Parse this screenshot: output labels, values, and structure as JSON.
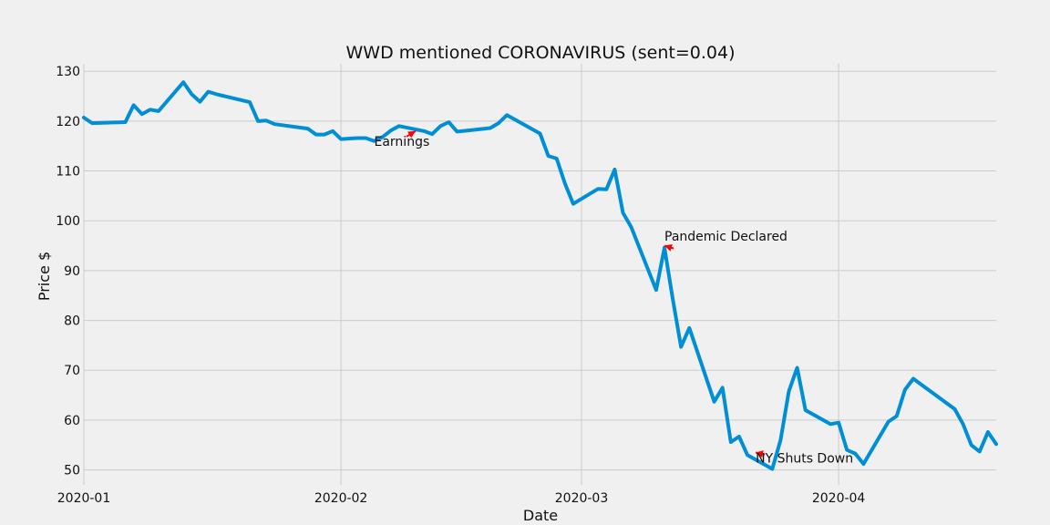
{
  "chart_data": {
    "type": "line",
    "title": "WWD mentioned CORONAVIRUS (sent=0.04)",
    "xlabel": "Date",
    "ylabel": "Price $",
    "xlim": [
      "2020-01-01",
      "2020-04-20"
    ],
    "ylim": [
      47,
      131.5
    ],
    "grid": true,
    "x_ticks": [
      {
        "date": "2020-01-01",
        "label": "2020-01"
      },
      {
        "date": "2020-02-01",
        "label": "2020-02"
      },
      {
        "date": "2020-03-01",
        "label": "2020-03"
      },
      {
        "date": "2020-04-01",
        "label": "2020-04"
      }
    ],
    "y_ticks": [
      50,
      60,
      70,
      80,
      90,
      100,
      110,
      120,
      130
    ],
    "series": [
      {
        "color": "#008fd5",
        "points": [
          [
            "2020-01-01",
            120.7
          ],
          [
            "2020-01-02",
            119.6
          ],
          [
            "2020-01-06",
            119.8
          ],
          [
            "2020-01-07",
            123.2
          ],
          [
            "2020-01-08",
            121.4
          ],
          [
            "2020-01-09",
            122.3
          ],
          [
            "2020-01-10",
            122.0
          ],
          [
            "2020-01-13",
            127.8
          ],
          [
            "2020-01-14",
            125.4
          ],
          [
            "2020-01-15",
            123.9
          ],
          [
            "2020-01-16",
            125.9
          ],
          [
            "2020-01-17",
            125.4
          ],
          [
            "2020-01-21",
            123.8
          ],
          [
            "2020-01-22",
            120.0
          ],
          [
            "2020-01-23",
            120.1
          ],
          [
            "2020-01-24",
            119.4
          ],
          [
            "2020-01-28",
            118.5
          ],
          [
            "2020-01-29",
            117.3
          ],
          [
            "2020-01-30",
            117.3
          ],
          [
            "2020-01-31",
            118.0
          ],
          [
            "2020-02-01",
            116.4
          ],
          [
            "2020-02-03",
            116.6
          ],
          [
            "2020-02-04",
            116.6
          ],
          [
            "2020-02-05",
            116.0
          ],
          [
            "2020-02-06",
            116.8
          ],
          [
            "2020-02-07",
            118.1
          ],
          [
            "2020-02-08",
            119.0
          ],
          [
            "2020-02-11",
            118.0
          ],
          [
            "2020-02-12",
            117.4
          ],
          [
            "2020-02-13",
            119.0
          ],
          [
            "2020-02-14",
            119.8
          ],
          [
            "2020-02-15",
            117.9
          ],
          [
            "2020-02-19",
            118.6
          ],
          [
            "2020-02-20",
            119.6
          ],
          [
            "2020-02-21",
            121.2
          ],
          [
            "2020-02-25",
            117.5
          ],
          [
            "2020-02-26",
            113.0
          ],
          [
            "2020-02-27",
            112.5
          ],
          [
            "2020-02-28",
            107.5
          ],
          [
            "2020-02-29",
            103.4
          ],
          [
            "2020-03-03",
            106.4
          ],
          [
            "2020-03-04",
            106.3
          ],
          [
            "2020-03-05",
            110.3
          ],
          [
            "2020-03-06",
            101.6
          ],
          [
            "2020-03-07",
            98.7
          ],
          [
            "2020-03-10",
            86.1
          ],
          [
            "2020-03-11",
            94.6
          ],
          [
            "2020-03-12",
            84.3
          ],
          [
            "2020-03-13",
            74.7
          ],
          [
            "2020-03-14",
            78.5
          ],
          [
            "2020-03-17",
            63.7
          ],
          [
            "2020-03-18",
            66.5
          ],
          [
            "2020-03-19",
            55.6
          ],
          [
            "2020-03-20",
            56.7
          ],
          [
            "2020-03-21",
            53.0
          ],
          [
            "2020-03-24",
            50.2
          ],
          [
            "2020-03-25",
            56.0
          ],
          [
            "2020-03-26",
            65.8
          ],
          [
            "2020-03-27",
            70.5
          ],
          [
            "2020-03-28",
            62.0
          ],
          [
            "2020-03-31",
            59.2
          ],
          [
            "2020-04-01",
            59.5
          ],
          [
            "2020-04-02",
            54.0
          ],
          [
            "2020-04-03",
            53.3
          ],
          [
            "2020-04-04",
            51.2
          ],
          [
            "2020-04-07",
            59.7
          ],
          [
            "2020-04-08",
            60.8
          ],
          [
            "2020-04-09",
            66.1
          ],
          [
            "2020-04-10",
            68.3
          ],
          [
            "2020-04-15",
            62.2
          ],
          [
            "2020-04-16",
            59.2
          ],
          [
            "2020-04-17",
            55.0
          ],
          [
            "2020-04-18",
            53.7
          ],
          [
            "2020-04-19",
            57.6
          ],
          [
            "2020-04-20",
            55.2
          ]
        ]
      }
    ],
    "annotations": [
      {
        "text": "Earnings",
        "point": [
          "2020-02-10",
          118.0
        ],
        "text_at": [
          "2020-02-05",
          115.0
        ]
      },
      {
        "text": "Pandemic Declared",
        "point": [
          "2020-03-11",
          95.0
        ],
        "text_at": [
          "2020-03-11",
          96.0
        ]
      },
      {
        "text": "NY Shuts Down",
        "point": [
          "2020-03-22",
          53.5
        ],
        "text_at": [
          "2020-03-22",
          51.5
        ]
      }
    ],
    "arrow_color": "#ff0000"
  }
}
